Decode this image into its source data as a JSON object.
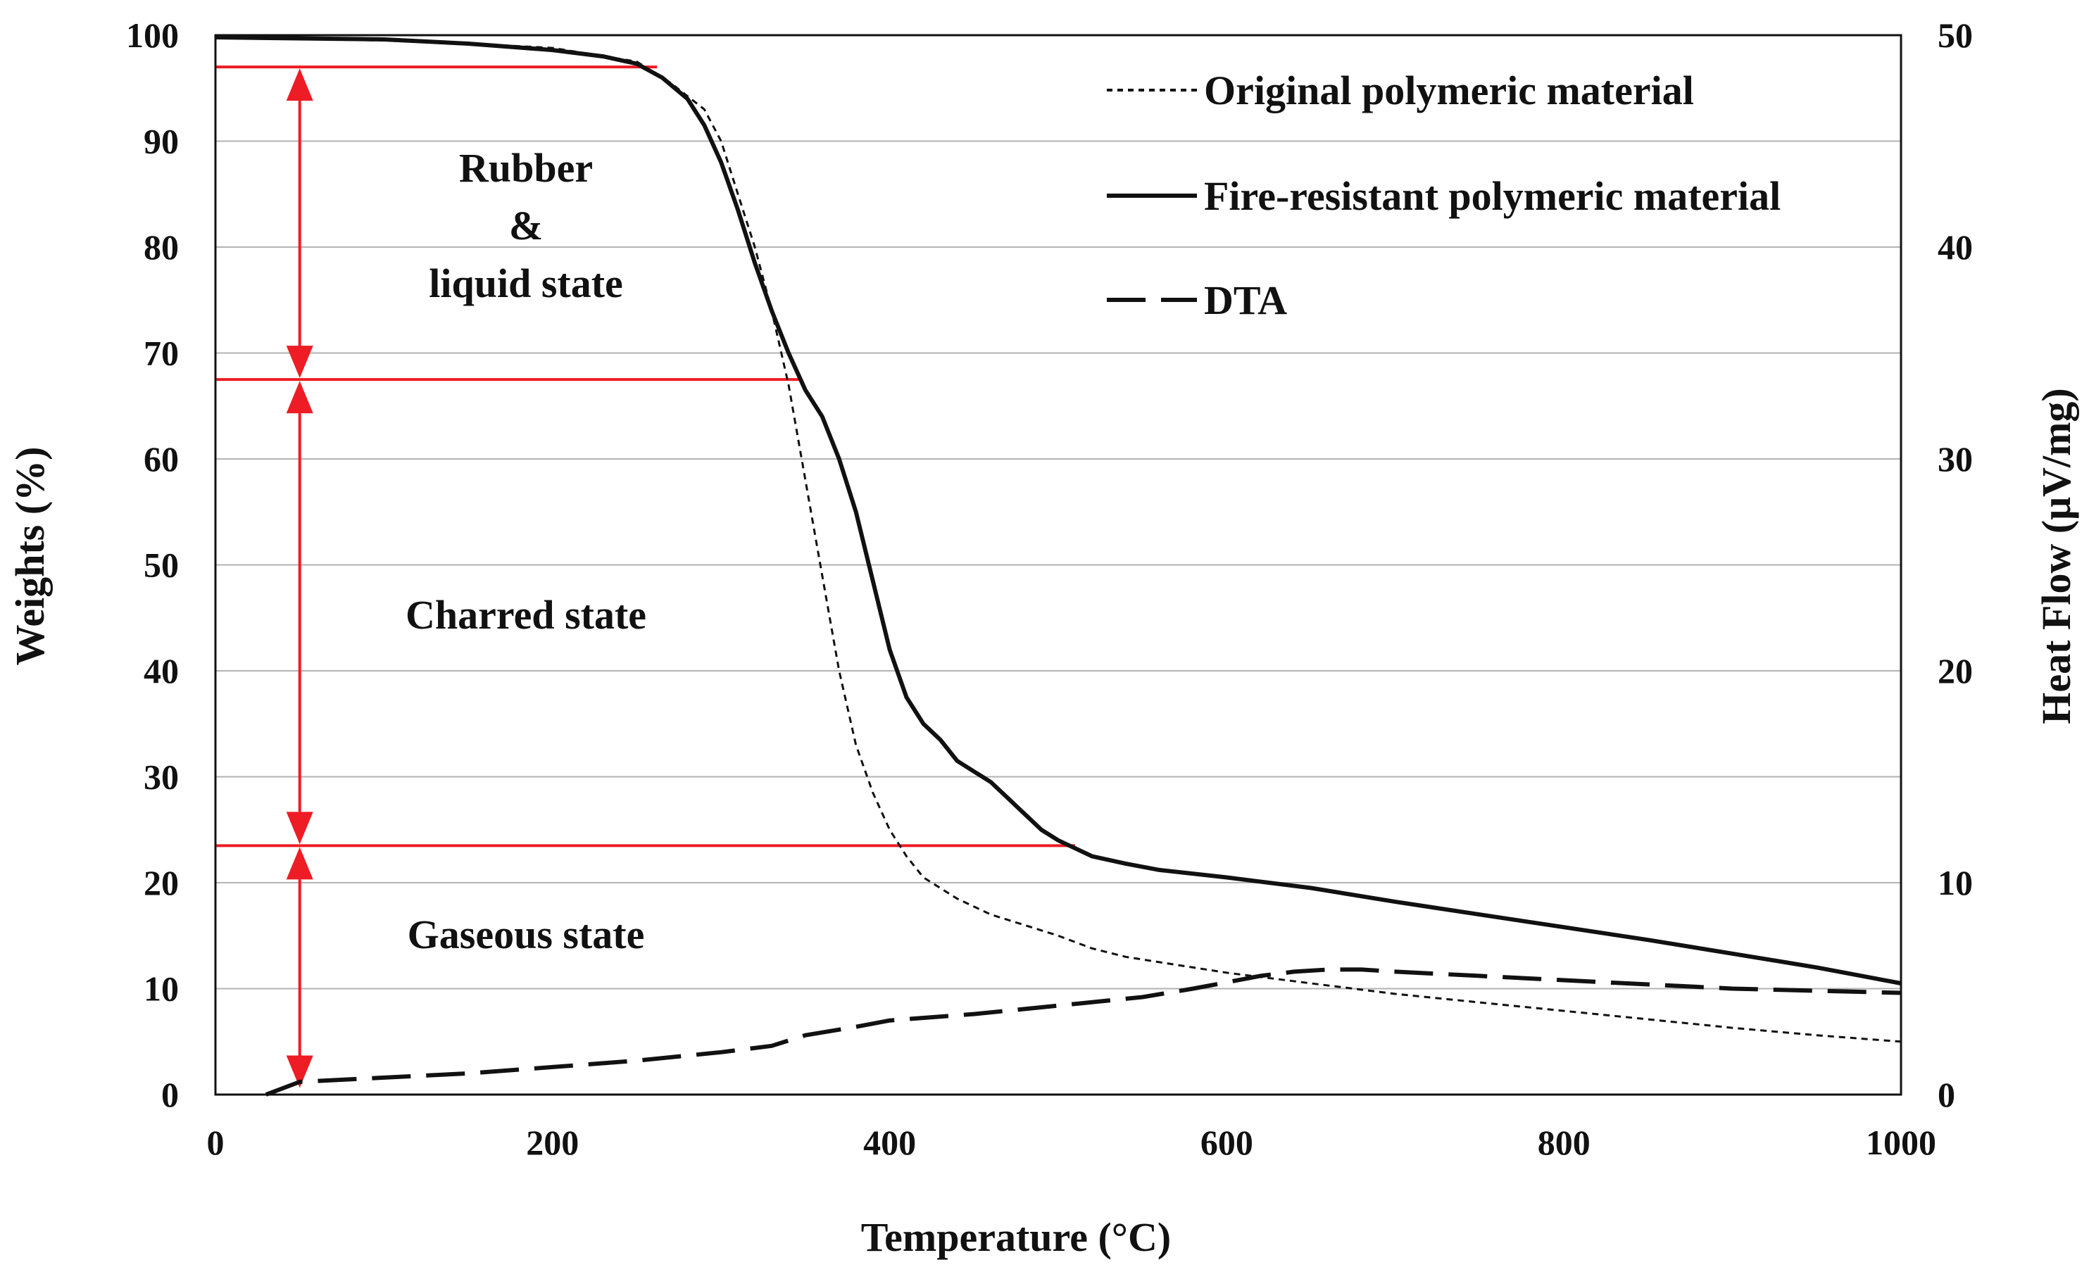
{
  "chart_data": {
    "type": "line",
    "xlabel": "Temperature (°C)",
    "ylabel": "Weights (%)",
    "y2label": "Heat Flow (μV/mg)",
    "xlim": [
      0,
      1000
    ],
    "ylim": [
      0,
      100
    ],
    "y2lim": [
      0,
      50
    ],
    "x_ticks": [
      "0",
      "200",
      "400",
      "600",
      "800",
      "1000"
    ],
    "y_ticks": [
      "0",
      "10",
      "20",
      "30",
      "40",
      "50",
      "60",
      "70",
      "80",
      "90",
      "100"
    ],
    "y2_ticks": [
      "0",
      "10",
      "20",
      "30",
      "40",
      "50"
    ],
    "grid": "horizontal",
    "legend_position": "top-right",
    "series": [
      {
        "name": "Original polymeric material",
        "style": "dotted",
        "axis": "left",
        "x": [
          30,
          100,
          150,
          200,
          250,
          270,
          290,
          300,
          310,
          320,
          330,
          340,
          350,
          360,
          370,
          380,
          390,
          400,
          410,
          420,
          440,
          460,
          480,
          500,
          520,
          540,
          560,
          580,
          600,
          650,
          700,
          750,
          800,
          850,
          900,
          950,
          1000
        ],
        "y": [
          99.7,
          99.5,
          99.2,
          98.8,
          97.5,
          95.5,
          93.0,
          90.0,
          85.0,
          80.0,
          74.0,
          67.0,
          58.0,
          49.0,
          40.0,
          33.0,
          28.5,
          25.0,
          22.5,
          20.5,
          18.5,
          17.0,
          16.0,
          15.0,
          13.8,
          13.0,
          12.5,
          12.0,
          11.5,
          10.5,
          9.5,
          8.7,
          7.9,
          7.1,
          6.3,
          5.6,
          5.0
        ]
      },
      {
        "name": "Fire-resistant polymeric material",
        "style": "solid",
        "axis": "left",
        "x": [
          0,
          100,
          150,
          200,
          230,
          250,
          265,
          280,
          290,
          300,
          310,
          320,
          330,
          340,
          350,
          360,
          370,
          380,
          390,
          400,
          410,
          420,
          430,
          440,
          450,
          460,
          470,
          480,
          490,
          500,
          520,
          540,
          560,
          600,
          650,
          700,
          750,
          800,
          850,
          900,
          950,
          1000
        ],
        "y": [
          99.8,
          99.6,
          99.2,
          98.6,
          98.0,
          97.3,
          96.0,
          94.0,
          91.5,
          88.0,
          83.5,
          78.5,
          74.0,
          70.0,
          66.5,
          64.0,
          60.0,
          55.0,
          48.5,
          42.0,
          37.5,
          35.0,
          33.5,
          31.5,
          30.5,
          29.5,
          28.0,
          26.5,
          25.0,
          24.0,
          22.5,
          21.8,
          21.2,
          20.5,
          19.5,
          18.2,
          17.0,
          15.8,
          14.6,
          13.3,
          12.0,
          10.5
        ]
      },
      {
        "name": "DTA",
        "style": "dashed",
        "axis": "right",
        "x": [
          30,
          50,
          100,
          150,
          200,
          250,
          300,
          330,
          350,
          380,
          400,
          450,
          500,
          550,
          580,
          600,
          620,
          640,
          660,
          680,
          700,
          750,
          800,
          850,
          900,
          950,
          1000
        ],
        "y": [
          0,
          0.6,
          0.8,
          1.0,
          1.3,
          1.6,
          2.0,
          2.3,
          2.8,
          3.2,
          3.5,
          3.8,
          4.2,
          4.6,
          5.0,
          5.3,
          5.6,
          5.8,
          5.9,
          5.9,
          5.8,
          5.6,
          5.4,
          5.2,
          5.0,
          4.9,
          4.8
        ]
      }
    ],
    "regions": [
      {
        "label_lines": [
          "Rubber",
          "&",
          "liquid state"
        ],
        "y_top": 97,
        "y_bottom": 67.5,
        "line_end_x": 262
      },
      {
        "label_lines": [
          "Charred state"
        ],
        "y_top": 67.5,
        "y_bottom": 23.5,
        "line_end_x": 348
      },
      {
        "label_lines": [
          "Gaseous state"
        ],
        "y_top": 23.5,
        "y_bottom": 0.5,
        "line_end_x": 510
      }
    ],
    "region_color": "#ee1c24",
    "region_arrow_x": 50
  }
}
